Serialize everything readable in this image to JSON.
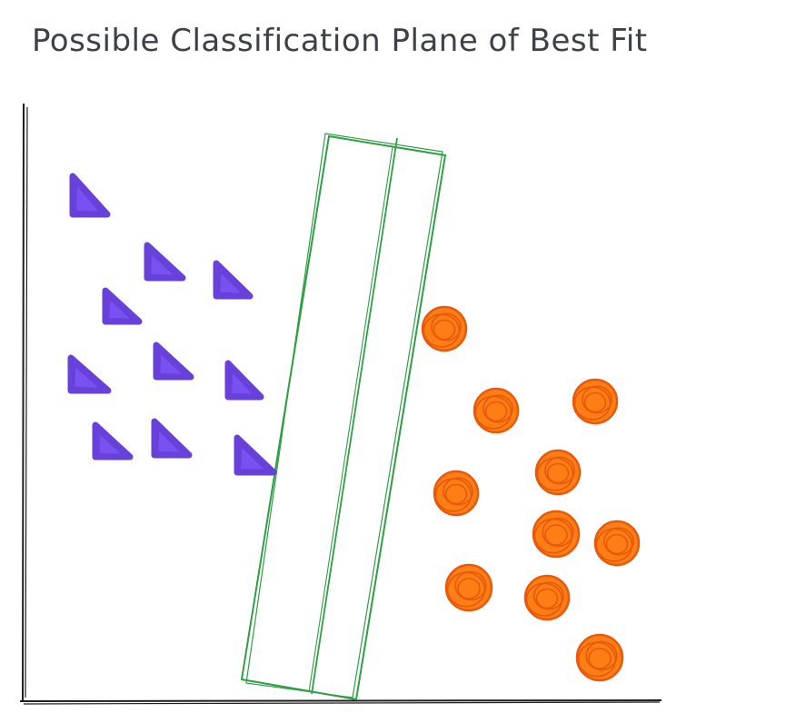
{
  "title": "Possible Classification Plane of Best Fit",
  "colors": {
    "title": "#3d4249",
    "axis": "#1e1e1e",
    "class_a": "#6741d9",
    "class_a_fill": "#7950f2",
    "class_b": "#e8590c",
    "class_b_fill": "#fd7e14",
    "plane": "#2f9e44"
  },
  "legend": {
    "class_a": "triangle",
    "class_b": "circle"
  }
}
